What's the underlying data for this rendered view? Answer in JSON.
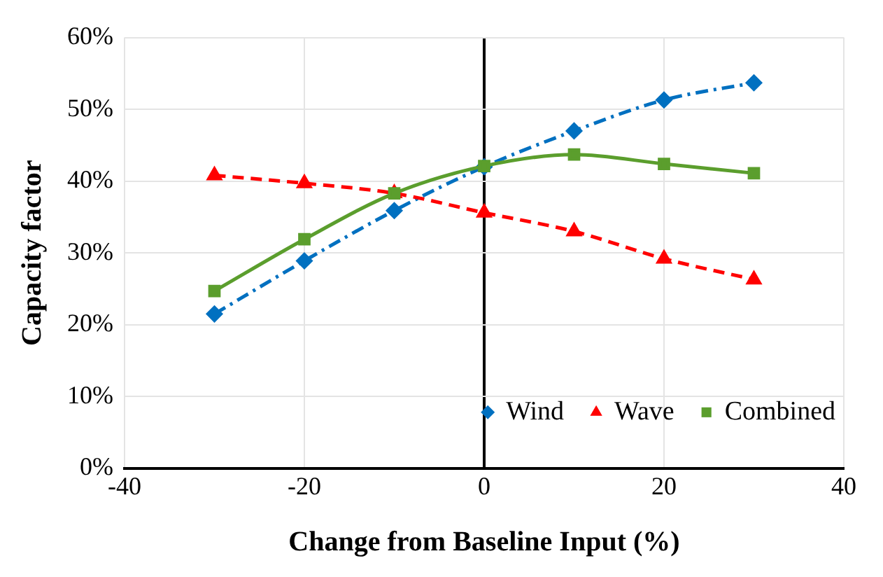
{
  "chart_data": {
    "type": "line",
    "xlabel": "Change from Baseline Input (%)",
    "ylabel": "Capacity factor",
    "x": [
      -30,
      -20,
      -10,
      0,
      10,
      20,
      30
    ],
    "series": [
      {
        "name": "Wind",
        "color": "#0070c0",
        "values": [
          21.5,
          28.9,
          35.9,
          42.0,
          47.0,
          51.3,
          53.7
        ],
        "marker": "diamond",
        "line_style": "dashdot"
      },
      {
        "name": "Wave",
        "color": "#ff0000",
        "values": [
          40.8,
          39.7,
          38.3,
          35.6,
          33.0,
          29.2,
          26.3
        ],
        "marker": "triangle",
        "line_style": "dashed"
      },
      {
        "name": "Combined",
        "color": "#5b9e2d",
        "values": [
          24.7,
          31.9,
          38.3,
          42.1,
          43.7,
          42.4,
          41.1
        ],
        "marker": "square",
        "line_style": "solid"
      }
    ],
    "xlim": [
      -40,
      40
    ],
    "xticks": [
      -40,
      -20,
      0,
      20,
      40
    ],
    "ylim": [
      0,
      60
    ],
    "yticks": [
      {
        "value": 0,
        "label": "0%"
      },
      {
        "value": 10,
        "label": "10%"
      },
      {
        "value": 20,
        "label": "20%"
      },
      {
        "value": 30,
        "label": "30%"
      },
      {
        "value": 40,
        "label": "40%"
      },
      {
        "value": 50,
        "label": "50%"
      },
      {
        "value": 60,
        "label": "60%"
      }
    ],
    "grid": true,
    "legend": "bottom right"
  }
}
